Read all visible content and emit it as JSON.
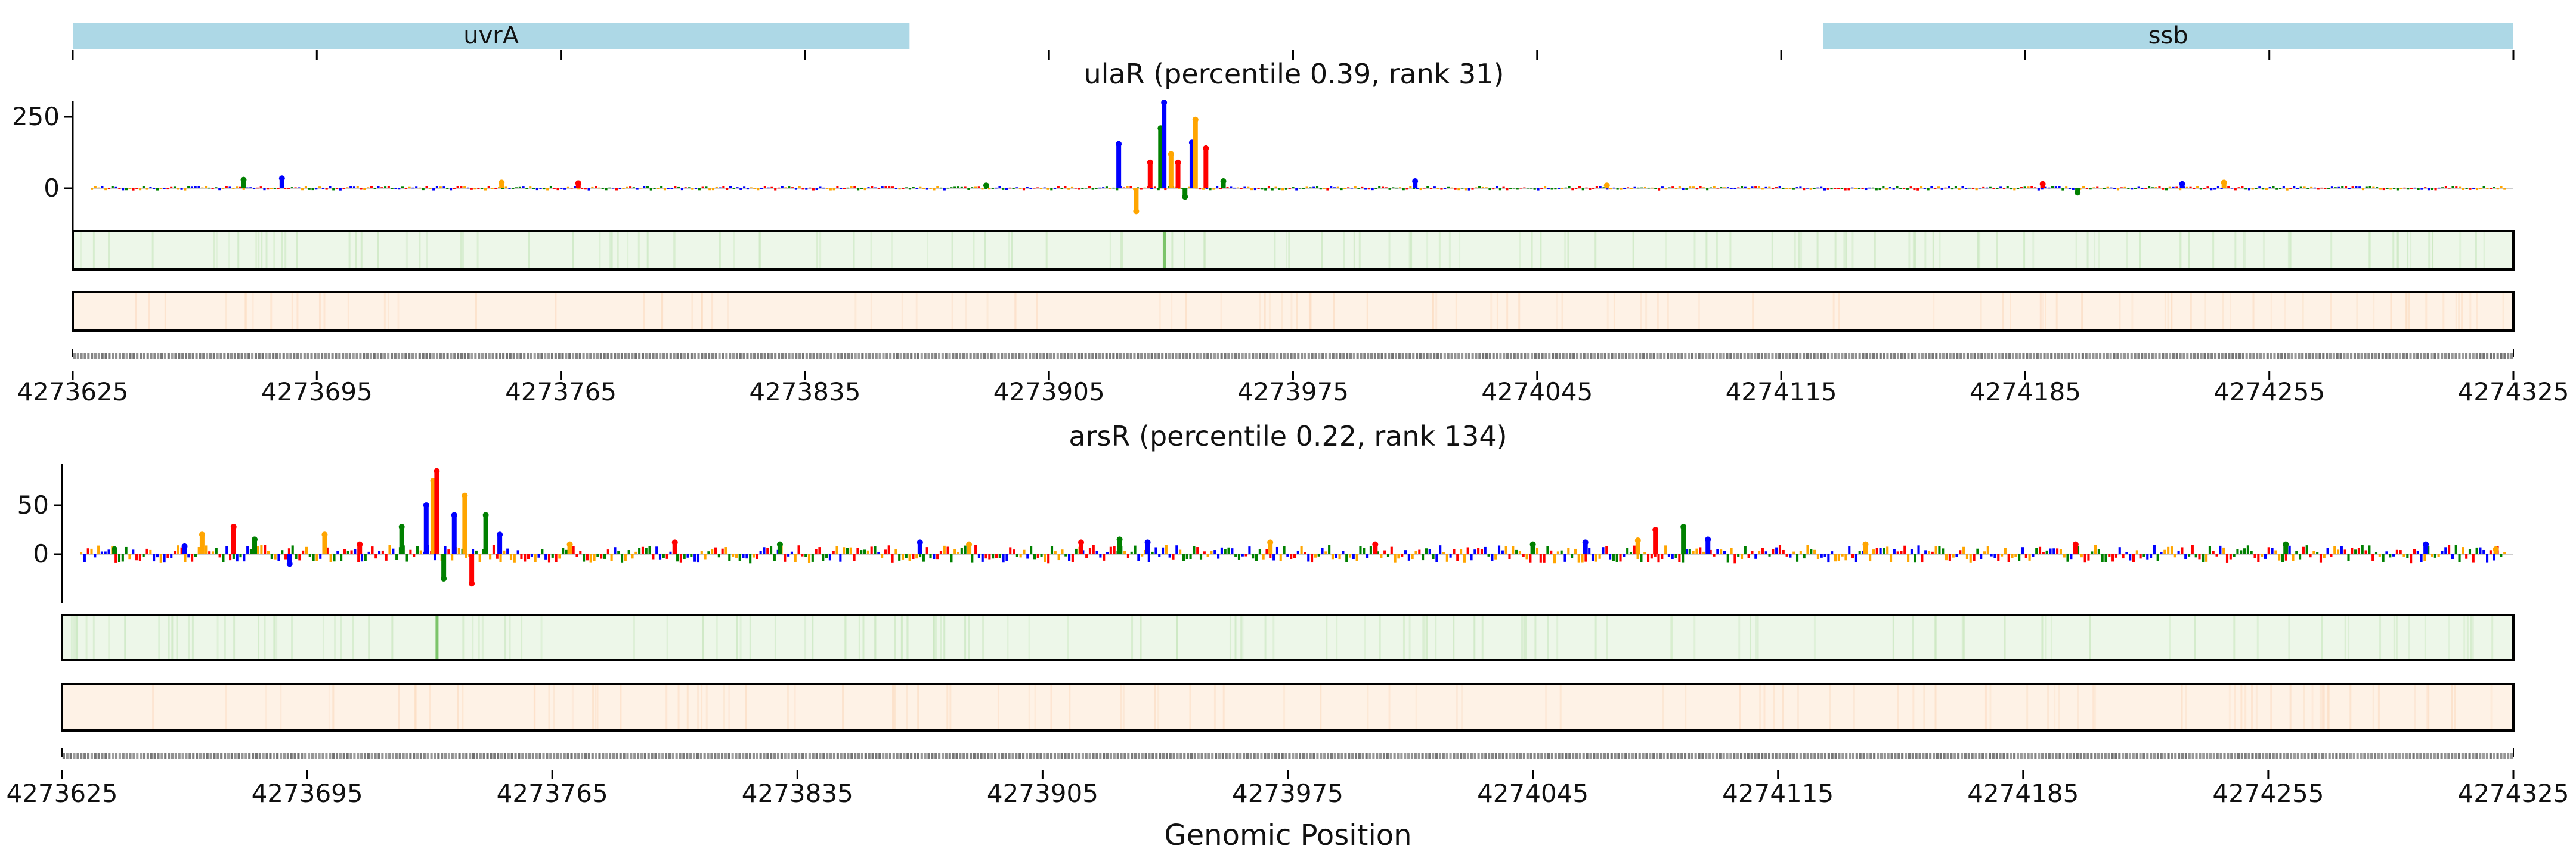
{
  "xlabel": "Genomic Position",
  "genes": [
    {
      "name": "uvrA",
      "start": 4273625,
      "end": 4273865
    },
    {
      "name": "ssb",
      "start": 4274127,
      "end": 4274325
    }
  ],
  "colors": {
    "gene_box": "#add8e6",
    "A": "#008000",
    "C": "#0000ff",
    "G": "#ffa500",
    "T": "#ff0000",
    "heat_green": "#edf7e9",
    "heat_peach": "#fef2e6"
  },
  "chart_data": [
    {
      "type": "bar",
      "title": "ulaR (percentile 0.39, rank 31)",
      "xlim": [
        4273625,
        4274325
      ],
      "xticks": [
        4273625,
        4273695,
        4273765,
        4273835,
        4273905,
        4273975,
        4274045,
        4274115,
        4274185,
        4274255,
        4274325
      ],
      "xtick_labels": [
        "4273625",
        "4273695",
        "4273765",
        "4273835",
        "4273905",
        "4273975",
        "4274045",
        "4274115",
        "4274185",
        "4274255",
        "4274325"
      ],
      "yticks": [
        0,
        250
      ],
      "ylim": [
        -90,
        310
      ],
      "peaks": [
        {
          "x": 4273674,
          "y": 30
        },
        {
          "x": 4273685,
          "y": 35
        },
        {
          "x": 4273748,
          "y": 20
        },
        {
          "x": 4273770,
          "y": 18
        },
        {
          "x": 4273887,
          "y": 10
        },
        {
          "x": 4273925,
          "y": 155
        },
        {
          "x": 4273930,
          "y": -80
        },
        {
          "x": 4273934,
          "y": 90
        },
        {
          "x": 4273937,
          "y": 210
        },
        {
          "x": 4273938,
          "y": 300
        },
        {
          "x": 4273940,
          "y": 120
        },
        {
          "x": 4273942,
          "y": 90
        },
        {
          "x": 4273944,
          "y": -30
        },
        {
          "x": 4273946,
          "y": 160
        },
        {
          "x": 4273947,
          "y": 240
        },
        {
          "x": 4273950,
          "y": 140
        },
        {
          "x": 4273955,
          "y": 25
        },
        {
          "x": 4274010,
          "y": 25
        },
        {
          "x": 4274065,
          "y": 10
        },
        {
          "x": 4274190,
          "y": 15
        },
        {
          "x": 4274200,
          "y": -15
        },
        {
          "x": 4274230,
          "y": 15
        },
        {
          "x": 4274242,
          "y": 20
        }
      ]
    },
    {
      "type": "bar",
      "title": "arsR (percentile 0.22, rank 134)",
      "xlim": [
        4273625,
        4274325
      ],
      "xticks": [
        4273625,
        4273695,
        4273765,
        4273835,
        4273905,
        4273975,
        4274045,
        4274115,
        4274185,
        4274255,
        4274325
      ],
      "xtick_labels": [
        "4273625",
        "4273695",
        "4273765",
        "4273835",
        "4273905",
        "4273975",
        "4274045",
        "4274115",
        "4274185",
        "4274255",
        "4274325"
      ],
      "yticks": [
        0,
        50
      ],
      "ylim": [
        -32,
        95
      ],
      "peaks": [
        {
          "x": 4273640,
          "y": 5
        },
        {
          "x": 4273660,
          "y": 8
        },
        {
          "x": 4273665,
          "y": 20
        },
        {
          "x": 4273674,
          "y": 28
        },
        {
          "x": 4273680,
          "y": 15
        },
        {
          "x": 4273690,
          "y": -10
        },
        {
          "x": 4273700,
          "y": 20
        },
        {
          "x": 4273710,
          "y": 10
        },
        {
          "x": 4273722,
          "y": 28
        },
        {
          "x": 4273729,
          "y": 50
        },
        {
          "x": 4273731,
          "y": 75
        },
        {
          "x": 4273732,
          "y": 85
        },
        {
          "x": 4273734,
          "y": -25
        },
        {
          "x": 4273737,
          "y": 40
        },
        {
          "x": 4273740,
          "y": 60
        },
        {
          "x": 4273742,
          "y": -30
        },
        {
          "x": 4273746,
          "y": 40
        },
        {
          "x": 4273750,
          "y": 20
        },
        {
          "x": 4273770,
          "y": 10
        },
        {
          "x": 4273800,
          "y": 12
        },
        {
          "x": 4273830,
          "y": 10
        },
        {
          "x": 4273870,
          "y": 12
        },
        {
          "x": 4273884,
          "y": 10
        },
        {
          "x": 4273916,
          "y": 12
        },
        {
          "x": 4273927,
          "y": 15
        },
        {
          "x": 4273935,
          "y": 12
        },
        {
          "x": 4273970,
          "y": 12
        },
        {
          "x": 4274000,
          "y": 10
        },
        {
          "x": 4274045,
          "y": 10
        },
        {
          "x": 4274060,
          "y": 12
        },
        {
          "x": 4274075,
          "y": 14
        },
        {
          "x": 4274080,
          "y": 25
        },
        {
          "x": 4274088,
          "y": 28
        },
        {
          "x": 4274095,
          "y": 15
        },
        {
          "x": 4274140,
          "y": 10
        },
        {
          "x": 4274200,
          "y": 10
        },
        {
          "x": 4274260,
          "y": 10
        },
        {
          "x": 4274300,
          "y": 10
        },
        {
          "x": 4274320,
          "y": 5
        }
      ]
    }
  ]
}
